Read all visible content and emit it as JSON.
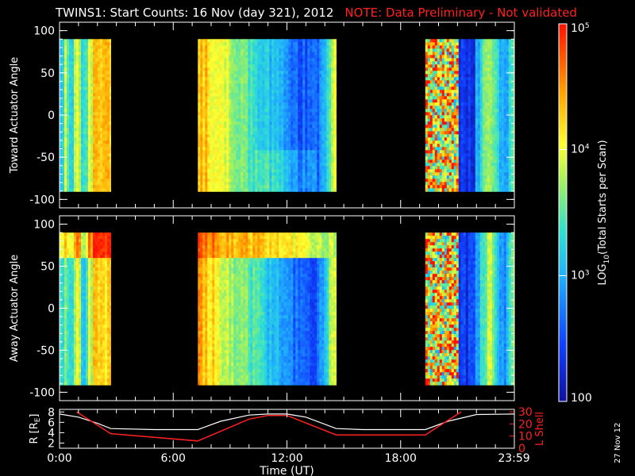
{
  "title": "TWINS1: Start Counts: 16 Nov (day 321), 2012",
  "note": "NOTE: Data Preliminary - Not validated",
  "date_stamp": "27 Nov 12",
  "colorbar": {
    "label_main": "LOG",
    "label_sub": "10",
    "label_rest": "(Total Starts per Scan)",
    "ticks": [
      {
        "value": "10",
        "exp": "5",
        "pos": 1.0
      },
      {
        "value": "10",
        "exp": "4",
        "pos": 0.667
      },
      {
        "value": "10",
        "exp": "3",
        "pos": 0.333
      },
      {
        "value": "100",
        "exp": "",
        "pos": 0.0
      }
    ]
  },
  "chart_data": [
    {
      "type": "heatmap",
      "ylabel": "Toward Actuator Angle",
      "ylim": [
        -110,
        110
      ],
      "yticks": [
        "100",
        "50",
        "0",
        "-50",
        "-100"
      ],
      "xlim_hours": [
        0,
        24
      ],
      "data_angle_range": [
        -90,
        90
      ],
      "data_blocks_hours": [
        [
          0.0,
          2.7
        ],
        [
          7.3,
          14.6
        ],
        [
          19.3,
          24.0
        ]
      ]
    },
    {
      "type": "heatmap",
      "ylabel": "Away Actuator Angle",
      "ylim": [
        -110,
        110
      ],
      "yticks": [
        "100",
        "50",
        "0",
        "-50",
        "-100"
      ],
      "xlim_hours": [
        0,
        24
      ],
      "data_angle_range": [
        -90,
        90
      ],
      "data_blocks_hours": [
        [
          0.0,
          2.7
        ],
        [
          7.3,
          14.6
        ],
        [
          19.3,
          24.0
        ]
      ]
    },
    {
      "type": "line",
      "xlabel": "Time (UT)",
      "xticks": [
        "0:00",
        "6:00",
        "12:00",
        "18:00",
        "23:59"
      ],
      "ylabel_left": "R [R",
      "ylabel_left_sub": "E",
      "ylabel_left_end": "]",
      "yticks_left": [
        "8",
        "6",
        "4",
        "2"
      ],
      "ylim_left": [
        1,
        8.5
      ],
      "ylabel_right": "L Shell",
      "yticks_right": [
        "30",
        "20",
        "10",
        "0"
      ],
      "ylim_right": [
        0,
        32
      ],
      "series": [
        {
          "name": "",
          "color": "#ffffff",
          "axis": "left",
          "x": [
            0,
            1,
            2,
            2.7,
            5,
            7.3,
            8.5,
            10,
            11,
            12,
            13,
            14.6,
            16,
            19.3,
            20.5,
            22,
            24
          ],
          "y": [
            7.6,
            7.0,
            5.8,
            4.8,
            4.6,
            4.6,
            6.2,
            7.4,
            7.6,
            7.6,
            7.0,
            4.8,
            4.6,
            4.6,
            6.2,
            7.5,
            7.6
          ]
        },
        {
          "name": "",
          "color": "#ff2020",
          "axis": "right",
          "x": [
            0.9,
            2.7,
            7.3,
            10,
            11,
            12,
            14.6,
            19.3,
            21.2
          ],
          "y": [
            30,
            12,
            6,
            24,
            27,
            27,
            11,
            11,
            30
          ]
        }
      ]
    }
  ]
}
